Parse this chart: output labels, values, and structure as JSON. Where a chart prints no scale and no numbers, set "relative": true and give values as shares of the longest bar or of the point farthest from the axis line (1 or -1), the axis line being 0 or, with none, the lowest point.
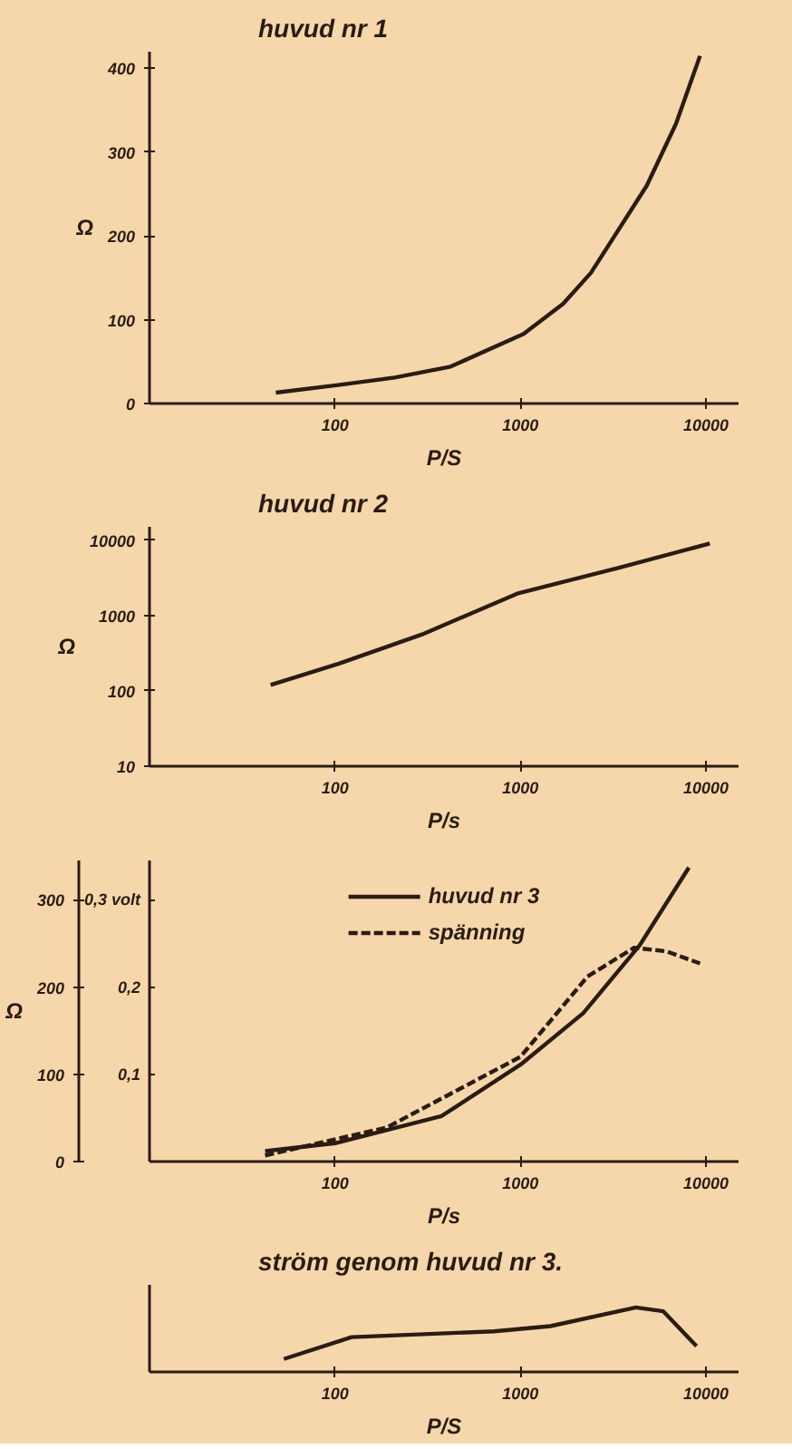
{
  "chart_data": [
    {
      "type": "line",
      "title": "huvud nr 1",
      "xlabel": "P/S",
      "ylabel": "Ω",
      "log": "x",
      "grid": false,
      "legend": false,
      "marker": "none",
      "xlim": [
        10,
        15000
      ],
      "xticks": [
        100,
        1000,
        10000
      ],
      "ylim": [
        0,
        420
      ],
      "yticks": [
        0,
        100,
        200,
        300,
        400
      ],
      "series": [
        {
          "color": "#2a1c12",
          "line_style": "solid",
          "x": [
            48,
            104,
            210,
            420,
            1040,
            1700,
            2400,
            4800,
            6900,
            9300
          ],
          "values": [
            13,
            22,
            31,
            44,
            83,
            119,
            156,
            260,
            334,
            415
          ]
        }
      ]
    },
    {
      "type": "line",
      "title": "huvud nr 2",
      "xlabel": "P/s",
      "ylabel": "Ω",
      "log": "xy",
      "grid": false,
      "legend": false,
      "marker": "none",
      "xlim": [
        10,
        15000
      ],
      "xticks": [
        100,
        1000,
        10000
      ],
      "ylim": [
        10,
        15000
      ],
      "yticks": [
        10,
        100,
        1000,
        10000
      ],
      "series": [
        {
          "color": "#2a1c12",
          "line_style": "solid",
          "x": [
            45,
            105,
            295,
            960,
            3400,
            10500
          ],
          "values": [
            120,
            230,
            560,
            1950,
            4300,
            9000
          ]
        }
      ]
    },
    {
      "type": "line",
      "xlabel": "P/s",
      "ylabel": "Ω",
      "log": "x",
      "grid": false,
      "legend": "top",
      "marker": "none",
      "xlim": [
        10,
        15000
      ],
      "xticks": [
        100,
        1000,
        10000
      ],
      "ylim": [
        0,
        345
      ],
      "yticks": [
        0,
        100,
        200,
        300
      ],
      "y2lim": [
        0,
        0.345
      ],
      "y2ticks": [
        {
          "value": 0.1,
          "label": "0,1"
        },
        {
          "value": 0.2,
          "label": "0,2"
        },
        {
          "value": 0.3,
          "label": "0,3 volt"
        }
      ],
      "series": [
        {
          "name": "huvud nr 3",
          "color": "#2a1c12",
          "line_style": "solid",
          "x": [
            42,
            100,
            375,
            1000,
            2180,
            4400,
            8100
          ],
          "values": [
            12,
            21,
            52,
            111,
            170,
            248,
            337
          ]
        },
        {
          "name": "spänning",
          "color": "#2a1c12",
          "line_style": "dashed",
          "axis": "y2",
          "x": [
            42,
            190,
            1000,
            2300,
            4100,
            6100,
            9300
          ],
          "values": [
            0.007,
            0.039,
            0.12,
            0.212,
            0.245,
            0.241,
            0.227
          ]
        }
      ]
    },
    {
      "type": "line",
      "title": "ström genom huvud nr 3.",
      "xlabel": "P/S",
      "log": "x",
      "grid": false,
      "legend": false,
      "marker": "none",
      "relative": true,
      "xlim": [
        10,
        15000
      ],
      "xticks": [
        100,
        1000,
        10000
      ],
      "series": [
        {
          "color": "#2a1c12",
          "line_style": "solid",
          "x": [
            53,
            123,
            720,
            1450,
            4200,
            5900,
            8900
          ],
          "values": [
            0.2,
            0.54,
            0.63,
            0.71,
            1,
            0.94,
            0.4
          ]
        }
      ]
    }
  ]
}
